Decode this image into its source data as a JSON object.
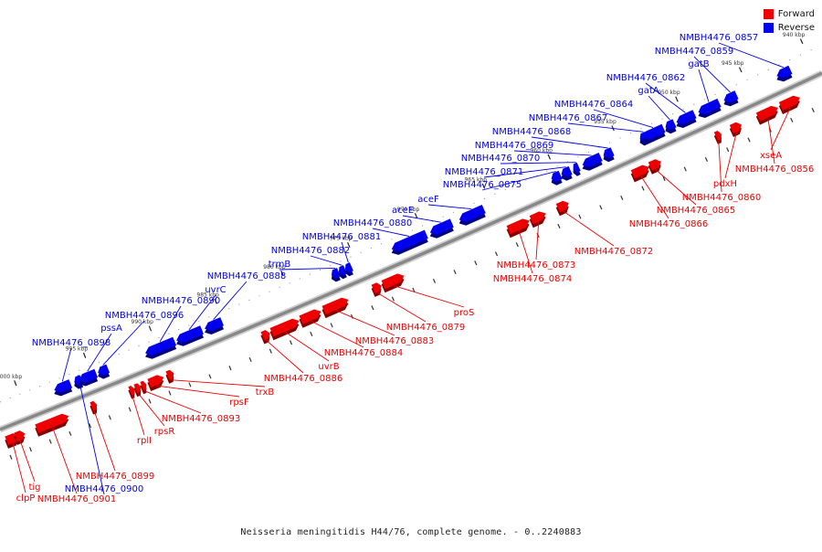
{
  "legend": {
    "forward": {
      "label": "Forward",
      "color": "#ee0000"
    },
    "reverse": {
      "label": "Reverse",
      "color": "#0000ee"
    }
  },
  "caption": "Neisseria meningitidis H44/76, complete genome. - 0..2240883",
  "backbone_color": "#888888",
  "ticks": [
    "1000 kbp",
    "995 kbp",
    "990 kbp",
    "985 kbp",
    "980 kbp",
    "975 kbp",
    "970 kbp",
    "965 kbp",
    "960 kbp",
    "955 kbp",
    "950 kbp",
    "945 kbp",
    "940 kbp"
  ],
  "genes": [
    {
      "name": "clpP",
      "strand": "forward"
    },
    {
      "name": "tig",
      "strand": "forward"
    },
    {
      "name": "NMBH4476_0901",
      "strand": "forward"
    },
    {
      "name": "NMBH4476_0900",
      "strand": "reverse"
    },
    {
      "name": "NMBH4476_0899",
      "strand": "forward"
    },
    {
      "name": "NMBH4476_0898",
      "strand": "reverse"
    },
    {
      "name": "pssA",
      "strand": "reverse"
    },
    {
      "name": "NMBH4476_0896",
      "strand": "reverse"
    },
    {
      "name": "rplI",
      "strand": "forward"
    },
    {
      "name": "rpsR",
      "strand": "forward"
    },
    {
      "name": "NMBH4476_0893",
      "strand": "forward"
    },
    {
      "name": "rpsF",
      "strand": "forward"
    },
    {
      "name": "trxB",
      "strand": "forward"
    },
    {
      "name": "NMBH4476_0890",
      "strand": "reverse"
    },
    {
      "name": "uvrC",
      "strand": "reverse"
    },
    {
      "name": "NMBH4476_0888",
      "strand": "reverse"
    },
    {
      "name": "NMBH4476_0886",
      "strand": "forward"
    },
    {
      "name": "uvrB",
      "strand": "forward"
    },
    {
      "name": "NMBH4476_0884",
      "strand": "forward"
    },
    {
      "name": "NMBH4476_0883",
      "strand": "forward"
    },
    {
      "name": "trmB",
      "strand": "reverse"
    },
    {
      "name": "NMBH4476_0882",
      "strand": "reverse"
    },
    {
      "name": "NMBH4476_0881",
      "strand": "reverse"
    },
    {
      "name": "NMBH4476_0880",
      "strand": "reverse"
    },
    {
      "name": "NMBH4476_0879",
      "strand": "forward"
    },
    {
      "name": "proS",
      "strand": "forward"
    },
    {
      "name": "aceE",
      "strand": "reverse"
    },
    {
      "name": "aceF",
      "strand": "reverse"
    },
    {
      "name": "NMBH4476_0875",
      "strand": "reverse"
    },
    {
      "name": "NMBH4476_0874",
      "strand": "forward"
    },
    {
      "name": "NMBH4476_0873",
      "strand": "forward"
    },
    {
      "name": "NMBH4476_0872",
      "strand": "forward"
    },
    {
      "name": "NMBH4476_0871",
      "strand": "reverse"
    },
    {
      "name": "NMBH4476_0870",
      "strand": "reverse"
    },
    {
      "name": "NMBH4476_0869",
      "strand": "reverse"
    },
    {
      "name": "NMBH4476_0868",
      "strand": "reverse"
    },
    {
      "name": "NMBH4476_0867",
      "strand": "reverse"
    },
    {
      "name": "NMBH4476_0866",
      "strand": "forward"
    },
    {
      "name": "NMBH4476_0865",
      "strand": "forward"
    },
    {
      "name": "NMBH4476_0864",
      "strand": "reverse"
    },
    {
      "name": "gatA",
      "strand": "reverse"
    },
    {
      "name": "NMBH4476_0862",
      "strand": "reverse"
    },
    {
      "name": "NMBH4476_0860",
      "strand": "forward"
    },
    {
      "name": "pdxH",
      "strand": "forward"
    },
    {
      "name": "gatB",
      "strand": "reverse"
    },
    {
      "name": "NMBH4476_0859",
      "strand": "reverse"
    },
    {
      "name": "NMBH4476_0857",
      "strand": "reverse"
    },
    {
      "name": "NMBH4476_0856",
      "strand": "forward"
    },
    {
      "name": "xseA",
      "strand": "forward"
    }
  ]
}
